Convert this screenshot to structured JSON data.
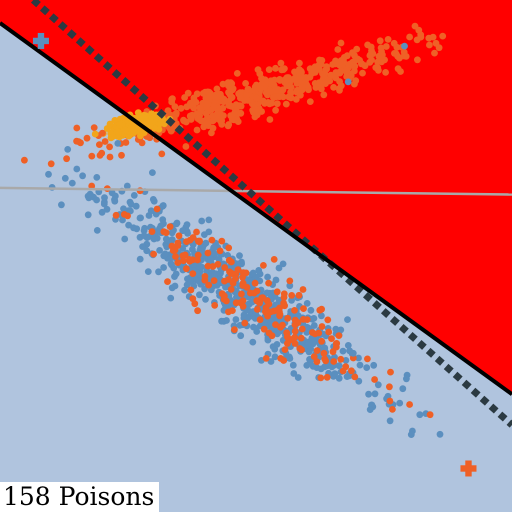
{
  "chart_data": {
    "type": "scatter",
    "title": "",
    "xlabel": "",
    "ylabel": "",
    "xlim": [
      0,
      10
    ],
    "ylim": [
      0,
      10
    ],
    "grid": false,
    "caption": "158 Poisons",
    "colors": {
      "positive_region": "#ff0000",
      "negative_region": "#b0c4de",
      "clean_blue": "#5b8fbf",
      "clean_orange": "#ef6026",
      "poison": "#f2a51a",
      "true_boundary": "#000000",
      "poisoned_boundary": "#2b3a42",
      "reference_line": "#a9a9a9"
    },
    "regions": [
      {
        "name": "positive",
        "color": "#ff0000",
        "side": "upper-right"
      },
      {
        "name": "negative",
        "color": "#b0c4de",
        "side": "lower-left"
      }
    ],
    "boundaries": [
      {
        "style": "solid",
        "color": "#000000",
        "p1": [
          0,
          9.55
        ],
        "p2": [
          10,
          2.3
        ]
      },
      {
        "style": "dotted",
        "color": "#2b3a42",
        "p1": [
          0.65,
          10
        ],
        "p2": [
          10,
          1.7
        ]
      },
      {
        "style": "solid",
        "color": "#a9a9a9",
        "p1": [
          0,
          6.33
        ],
        "p2": [
          10,
          6.2
        ]
      }
    ],
    "markers": [
      {
        "shape": "plus",
        "color": "#5b8fbf",
        "x": 0.8,
        "y": 9.2
      },
      {
        "shape": "plus",
        "color": "#ef6026",
        "x": 9.15,
        "y": 0.85
      }
    ],
    "clusters": [
      {
        "color": "#5b8fbf",
        "count": 620,
        "center": [
          4.7,
          4.3
        ],
        "spread_major": 1.55,
        "spread_minor": 0.3,
        "angle_deg": -36,
        "seed": 11
      },
      {
        "color": "#ef6026",
        "count": 190,
        "center": [
          4.9,
          4.2
        ],
        "spread_major": 1.4,
        "spread_minor": 0.28,
        "angle_deg": -36,
        "seed": 23
      },
      {
        "color": "#ef6026",
        "count": 480,
        "center": [
          5.1,
          8.2
        ],
        "spread_major": 1.55,
        "spread_minor": 0.2,
        "angle_deg": 17,
        "seed": 37
      },
      {
        "color": "#f2a51a",
        "count": 158,
        "center": [
          2.6,
          7.55
        ],
        "spread_major": 0.3,
        "spread_minor": 0.1,
        "angle_deg": 15,
        "seed": 51
      }
    ],
    "extra_points": [
      {
        "color": "#5b8fbf",
        "points": [
          [
            1.5,
            6.7
          ],
          [
            1.2,
            6.0
          ],
          [
            1.9,
            5.5
          ],
          [
            7.9,
            9.1
          ],
          [
            6.8,
            8.4
          ],
          [
            8.2,
            1.9
          ],
          [
            7.2,
            2.3
          ],
          [
            6.9,
            3.1
          ],
          [
            2.3,
            7.2
          ]
        ]
      },
      {
        "color": "#ef6026",
        "points": [
          [
            1.0,
            6.8
          ],
          [
            1.3,
            6.9
          ],
          [
            1.7,
            7.3
          ],
          [
            1.5,
            7.5
          ],
          [
            2.0,
            7.4
          ],
          [
            7.4,
            8.9
          ],
          [
            8.0,
            2.1
          ],
          [
            8.4,
            1.9
          ],
          [
            5.2,
            3.0
          ]
        ]
      }
    ]
  }
}
